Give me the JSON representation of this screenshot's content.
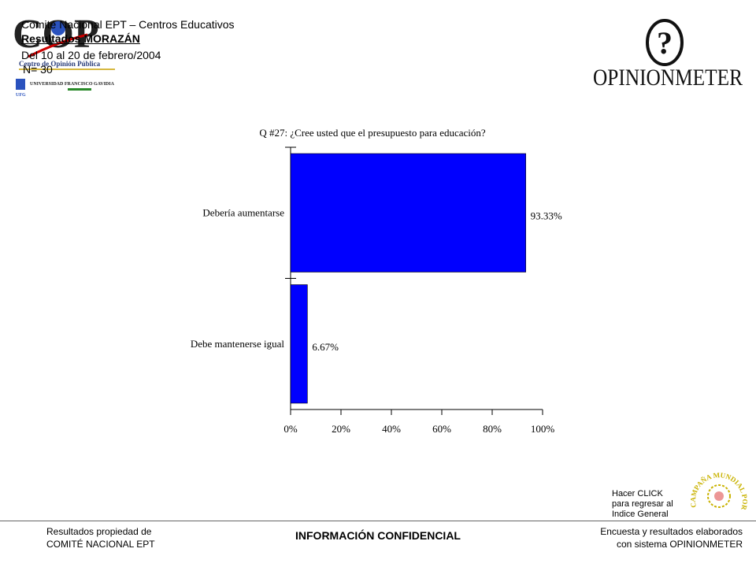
{
  "header": {
    "line1": "Comité Nacional EPT – Centros Educativos",
    "line2": "Resultados MORAZÁN",
    "line3": "Del 10 al 20 de febrero/2004",
    "line4": "N= 30"
  },
  "logos": {
    "cop_letters": "COP",
    "cop_subtitle": "Centro de Opinión Pública",
    "university": "UNIVERSIDAD FRANCISCO GAVIDIA",
    "university_short": "UFG",
    "opinionmeter_symbol": "?",
    "opinionmeter_name": "OPINIONMETER",
    "stamp_text": "CAMPAÑA MUNDIAL POR LA EDUCACIÓN"
  },
  "chart_data": {
    "type": "bar",
    "orientation": "horizontal",
    "title": "Q #27: ¿Cree usted que el presupuesto para educación?",
    "categories": [
      "Debería aumentarse",
      "Debe mantenerse igual"
    ],
    "values": [
      93.33,
      6.67
    ],
    "value_labels": [
      "93.33%",
      "6.67%"
    ],
    "xlim": [
      0,
      100
    ],
    "xticks": [
      "0%",
      "20%",
      "40%",
      "60%",
      "80%",
      "100%"
    ],
    "bar_color": "#0000FF",
    "grid": false
  },
  "footer": {
    "left_line1": "Resultados propiedad de",
    "left_line2": "COMITÉ  NACIONAL  EPT",
    "center": "INFORMACIÓN CONFIDENCIAL",
    "right_line1": "Encuesta y resultados elaborados",
    "right_line2": "con sistema OPINIONMETER",
    "click_line1": "Hacer CLICK",
    "click_line2": "para regresar al",
    "click_line3": "Indice General"
  }
}
